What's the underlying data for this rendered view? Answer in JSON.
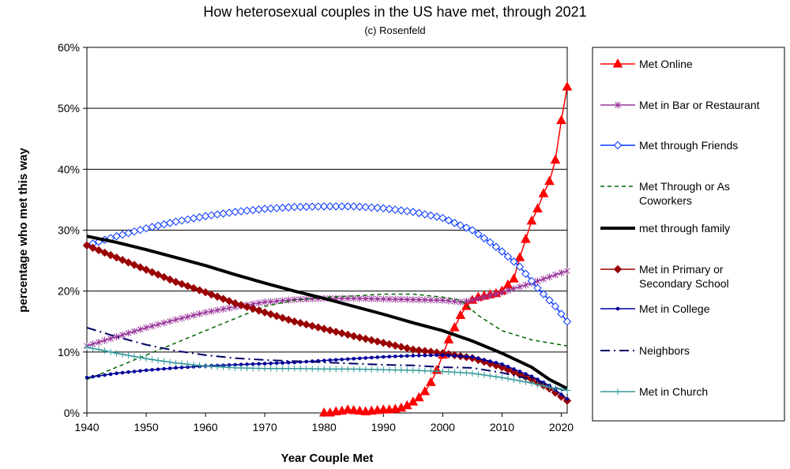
{
  "chart_data": {
    "type": "line",
    "title": "How heterosexual couples in the US have met, through 2021",
    "subtitle": "(c) Rosenfeld",
    "xlabel": "Year Couple Met",
    "ylabel": "percentage who met this way",
    "xlim": [
      1940,
      2021
    ],
    "ylim": [
      0,
      60
    ],
    "x_ticks": [
      "1940",
      "1950",
      "1960",
      "1970",
      "1980",
      "1990",
      "2000",
      "2010",
      "2020"
    ],
    "x_tick_values": [
      1940,
      1950,
      1960,
      1970,
      1980,
      1990,
      2000,
      2010,
      2020
    ],
    "y_ticks": [
      "0%",
      "10%",
      "20%",
      "30%",
      "40%",
      "50%",
      "60%"
    ],
    "y_tick_values": [
      0,
      10,
      20,
      30,
      40,
      50,
      60
    ],
    "grid": "horizontal",
    "legend_position": "right",
    "series": [
      {
        "name": "Met Online",
        "color": "#ff0000",
        "style": "solid",
        "marker": "triangle",
        "points": [
          [
            1980,
            0
          ],
          [
            1981,
            0
          ],
          [
            1982,
            0.2
          ],
          [
            1983,
            0.3
          ],
          [
            1984,
            0.5
          ],
          [
            1985,
            0.4
          ],
          [
            1986,
            0.3
          ],
          [
            1987,
            0.2
          ],
          [
            1988,
            0.3
          ],
          [
            1989,
            0.4
          ],
          [
            1990,
            0.5
          ],
          [
            1991,
            0.5
          ],
          [
            1992,
            0.6
          ],
          [
            1993,
            0.8
          ],
          [
            1994,
            1.2
          ],
          [
            1995,
            1.8
          ],
          [
            1996,
            2.5
          ],
          [
            1997,
            3.5
          ],
          [
            1998,
            5
          ],
          [
            1999,
            7
          ],
          [
            2000,
            9.5
          ],
          [
            2001,
            12
          ],
          [
            2002,
            14
          ],
          [
            2003,
            16
          ],
          [
            2004,
            17.5
          ],
          [
            2005,
            18.5
          ],
          [
            2006,
            19
          ],
          [
            2007,
            19.2
          ],
          [
            2008,
            19.4
          ],
          [
            2009,
            19.6
          ],
          [
            2010,
            20
          ],
          [
            2011,
            21
          ],
          [
            2012,
            22
          ],
          [
            2013,
            25.5
          ],
          [
            2014,
            28.5
          ],
          [
            2015,
            31.5
          ],
          [
            2016,
            33.5
          ],
          [
            2017,
            36
          ],
          [
            2018,
            38
          ],
          [
            2019,
            41.5
          ],
          [
            2020,
            48
          ],
          [
            2021,
            53.5
          ]
        ]
      },
      {
        "name": "Met in Bar or Restaurant",
        "color": "#993399",
        "style": "solid",
        "marker": "star",
        "points": [
          [
            1940,
            11
          ],
          [
            1945,
            12.5
          ],
          [
            1950,
            14
          ],
          [
            1955,
            15.3
          ],
          [
            1960,
            16.5
          ],
          [
            1965,
            17.4
          ],
          [
            1970,
            18.2
          ],
          [
            1975,
            18.6
          ],
          [
            1980,
            18.8
          ],
          [
            1985,
            18.8
          ],
          [
            1990,
            18.7
          ],
          [
            1995,
            18.6
          ],
          [
            2000,
            18.5
          ],
          [
            2003,
            18.2
          ],
          [
            2005,
            18.5
          ],
          [
            2010,
            19.8
          ],
          [
            2015,
            21.3
          ],
          [
            2020,
            23
          ],
          [
            2021,
            23.3
          ]
        ]
      },
      {
        "name": "Met through Friends",
        "color": "#0033ff",
        "style": "solid",
        "marker": "diamond-open",
        "points": [
          [
            1940,
            27.5
          ],
          [
            1945,
            29
          ],
          [
            1950,
            30.3
          ],
          [
            1955,
            31.4
          ],
          [
            1960,
            32.3
          ],
          [
            1965,
            33
          ],
          [
            1970,
            33.5
          ],
          [
            1975,
            33.8
          ],
          [
            1980,
            33.9
          ],
          [
            1985,
            33.9
          ],
          [
            1990,
            33.6
          ],
          [
            1995,
            33
          ],
          [
            2000,
            32
          ],
          [
            2005,
            30
          ],
          [
            2008,
            28
          ],
          [
            2010,
            26.5
          ],
          [
            2013,
            24
          ],
          [
            2016,
            20.5
          ],
          [
            2019,
            17.5
          ],
          [
            2021,
            15
          ]
        ]
      },
      {
        "name": "Met Through or As Coworkers",
        "color": "#006600",
        "style": "dashed",
        "marker": "none",
        "points": [
          [
            1940,
            5.5
          ],
          [
            1945,
            7.5
          ],
          [
            1950,
            9.5
          ],
          [
            1955,
            11.5
          ],
          [
            1960,
            13.5
          ],
          [
            1965,
            15.5
          ],
          [
            1970,
            17.5
          ],
          [
            1975,
            18.5
          ],
          [
            1980,
            19
          ],
          [
            1985,
            19.2
          ],
          [
            1990,
            19.5
          ],
          [
            1995,
            19.5
          ],
          [
            2000,
            19
          ],
          [
            2003,
            18.5
          ],
          [
            2006,
            16
          ],
          [
            2010,
            13.5
          ],
          [
            2015,
            12
          ],
          [
            2018,
            11.5
          ],
          [
            2021,
            11
          ]
        ]
      },
      {
        "name": "met through family",
        "color": "#000000",
        "style": "thick",
        "marker": "none",
        "points": [
          [
            1940,
            29
          ],
          [
            1945,
            28
          ],
          [
            1950,
            26.8
          ],
          [
            1955,
            25.5
          ],
          [
            1960,
            24.2
          ],
          [
            1965,
            22.7
          ],
          [
            1970,
            21.3
          ],
          [
            1975,
            20
          ],
          [
            1980,
            18.8
          ],
          [
            1985,
            17.5
          ],
          [
            1990,
            16.2
          ],
          [
            1995,
            14.8
          ],
          [
            2000,
            13.5
          ],
          [
            2005,
            11.8
          ],
          [
            2010,
            9.8
          ],
          [
            2015,
            7.5
          ],
          [
            2018,
            5.5
          ],
          [
            2021,
            4
          ]
        ]
      },
      {
        "name": "Met in Primary or Secondary School",
        "color": "#990000",
        "style": "solid",
        "marker": "diamond",
        "points": [
          [
            1940,
            27.5
          ],
          [
            1945,
            25.5
          ],
          [
            1950,
            23.5
          ],
          [
            1955,
            21.5
          ],
          [
            1960,
            19.8
          ],
          [
            1965,
            18
          ],
          [
            1970,
            16.5
          ],
          [
            1975,
            15
          ],
          [
            1980,
            13.8
          ],
          [
            1985,
            12.6
          ],
          [
            1990,
            11.5
          ],
          [
            1995,
            10.4
          ],
          [
            2000,
            9.8
          ],
          [
            2005,
            9
          ],
          [
            2010,
            7.5
          ],
          [
            2015,
            5.5
          ],
          [
            2018,
            4
          ],
          [
            2021,
            2
          ]
        ]
      },
      {
        "name": "Met in College",
        "color": "#000099",
        "style": "solid",
        "marker": "dot",
        "points": [
          [
            1940,
            5.8
          ],
          [
            1945,
            6.5
          ],
          [
            1950,
            7
          ],
          [
            1955,
            7.4
          ],
          [
            1960,
            7.7
          ],
          [
            1965,
            7.9
          ],
          [
            1970,
            8.1
          ],
          [
            1975,
            8.3
          ],
          [
            1980,
            8.6
          ],
          [
            1985,
            8.9
          ],
          [
            1990,
            9.2
          ],
          [
            1995,
            9.4
          ],
          [
            2000,
            9.5
          ],
          [
            2005,
            9.2
          ],
          [
            2010,
            8
          ],
          [
            2015,
            6
          ],
          [
            2018,
            4.5
          ],
          [
            2021,
            2.3
          ]
        ]
      },
      {
        "name": "Neighbors",
        "color": "#000066",
        "style": "dashdot",
        "marker": "none",
        "points": [
          [
            1940,
            14
          ],
          [
            1945,
            12.5
          ],
          [
            1950,
            11.2
          ],
          [
            1955,
            10.2
          ],
          [
            1960,
            9.5
          ],
          [
            1965,
            9
          ],
          [
            1970,
            8.7
          ],
          [
            1975,
            8.5
          ],
          [
            1980,
            8.3
          ],
          [
            1985,
            8.1
          ],
          [
            1990,
            7.9
          ],
          [
            1995,
            7.8
          ],
          [
            2000,
            7.5
          ],
          [
            2005,
            7.4
          ],
          [
            2010,
            6.6
          ],
          [
            2015,
            5.5
          ],
          [
            2018,
            4.5
          ],
          [
            2021,
            3.5
          ]
        ]
      },
      {
        "name": "Met in Church",
        "color": "#339999",
        "style": "solid",
        "marker": "plus",
        "points": [
          [
            1940,
            10.8
          ],
          [
            1945,
            9.8
          ],
          [
            1950,
            8.9
          ],
          [
            1955,
            8.2
          ],
          [
            1960,
            7.7
          ],
          [
            1965,
            7.4
          ],
          [
            1970,
            7.3
          ],
          [
            1975,
            7.3
          ],
          [
            1980,
            7.2
          ],
          [
            1985,
            7.2
          ],
          [
            1990,
            7.1
          ],
          [
            1995,
            7
          ],
          [
            2000,
            6.8
          ],
          [
            2005,
            6.5
          ],
          [
            2010,
            5.8
          ],
          [
            2015,
            4.9
          ],
          [
            2018,
            4.2
          ],
          [
            2021,
            3.7
          ]
        ]
      }
    ],
    "legend": [
      [
        "Met Online"
      ],
      [
        "Met in Bar or Restaurant"
      ],
      [
        "Met through Friends"
      ],
      [
        "Met Through or As",
        "Coworkers"
      ],
      [
        "met through family"
      ],
      [
        "Met in Primary or",
        "Secondary School"
      ],
      [
        "Met in College"
      ],
      [
        "Neighbors"
      ],
      [
        "Met in Church"
      ]
    ]
  }
}
